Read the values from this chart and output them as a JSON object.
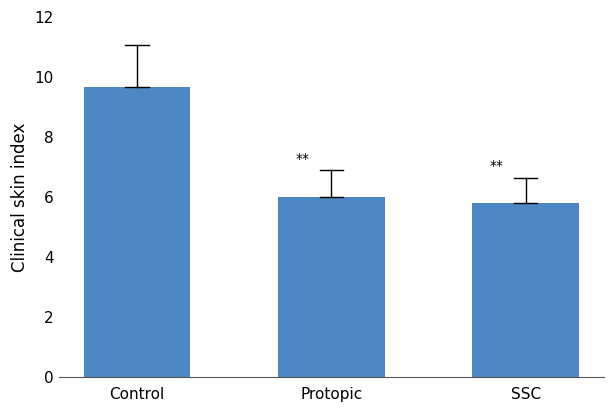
{
  "categories": [
    "Control",
    "Protopic",
    "SSC"
  ],
  "values": [
    9.67,
    6.0,
    5.8
  ],
  "errors_up": [
    1.4,
    0.9,
    0.85
  ],
  "errors_down": [
    0.0,
    0.0,
    0.0
  ],
  "bar_color": "#4d88c4",
  "bar_width": 0.55,
  "ylabel": "Clinical skin index",
  "ylim": [
    0,
    12
  ],
  "yticks": [
    0,
    2,
    4,
    6,
    8,
    10,
    12
  ],
  "significance": [
    "",
    "**",
    "**"
  ],
  "sig_fontsize": 10,
  "ylabel_fontsize": 12,
  "tick_fontsize": 11,
  "error_capsize": 4,
  "error_color": "black",
  "error_linewidth": 1.0,
  "background_color": "#ffffff"
}
